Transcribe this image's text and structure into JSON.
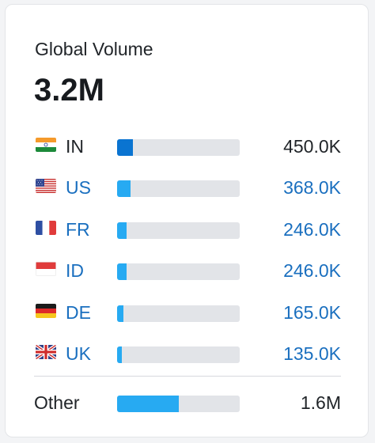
{
  "widget": {
    "title": "Global Volume",
    "total": "3.2M"
  },
  "colors": {
    "link": "#1a6fbf",
    "text": "#212529",
    "bar_top": "#0a74d1",
    "bar_light": "#27aaf2",
    "track": "#e2e4e8"
  },
  "countries": [
    {
      "code": "IN",
      "value": "450.0K",
      "share": 0.13,
      "flag": "india-flag-icon",
      "linked": false,
      "bar_color": "#0a74d1"
    },
    {
      "code": "US",
      "value": "368.0K",
      "share": 0.11,
      "flag": "usa-flag-icon",
      "linked": true,
      "bar_color": "#27aaf2"
    },
    {
      "code": "FR",
      "value": "246.0K",
      "share": 0.075,
      "flag": "france-flag-icon",
      "linked": true,
      "bar_color": "#27aaf2"
    },
    {
      "code": "ID",
      "value": "246.0K",
      "share": 0.075,
      "flag": "indonesia-flag-icon",
      "linked": true,
      "bar_color": "#27aaf2"
    },
    {
      "code": "DE",
      "value": "165.0K",
      "share": 0.05,
      "flag": "germany-flag-icon",
      "linked": true,
      "bar_color": "#27aaf2"
    },
    {
      "code": "UK",
      "value": "135.0K",
      "share": 0.04,
      "flag": "uk-flag-icon",
      "linked": true,
      "bar_color": "#27aaf2"
    }
  ],
  "other": {
    "label": "Other",
    "value": "1.6M",
    "share": 0.5,
    "bar_color": "#27aaf2"
  }
}
